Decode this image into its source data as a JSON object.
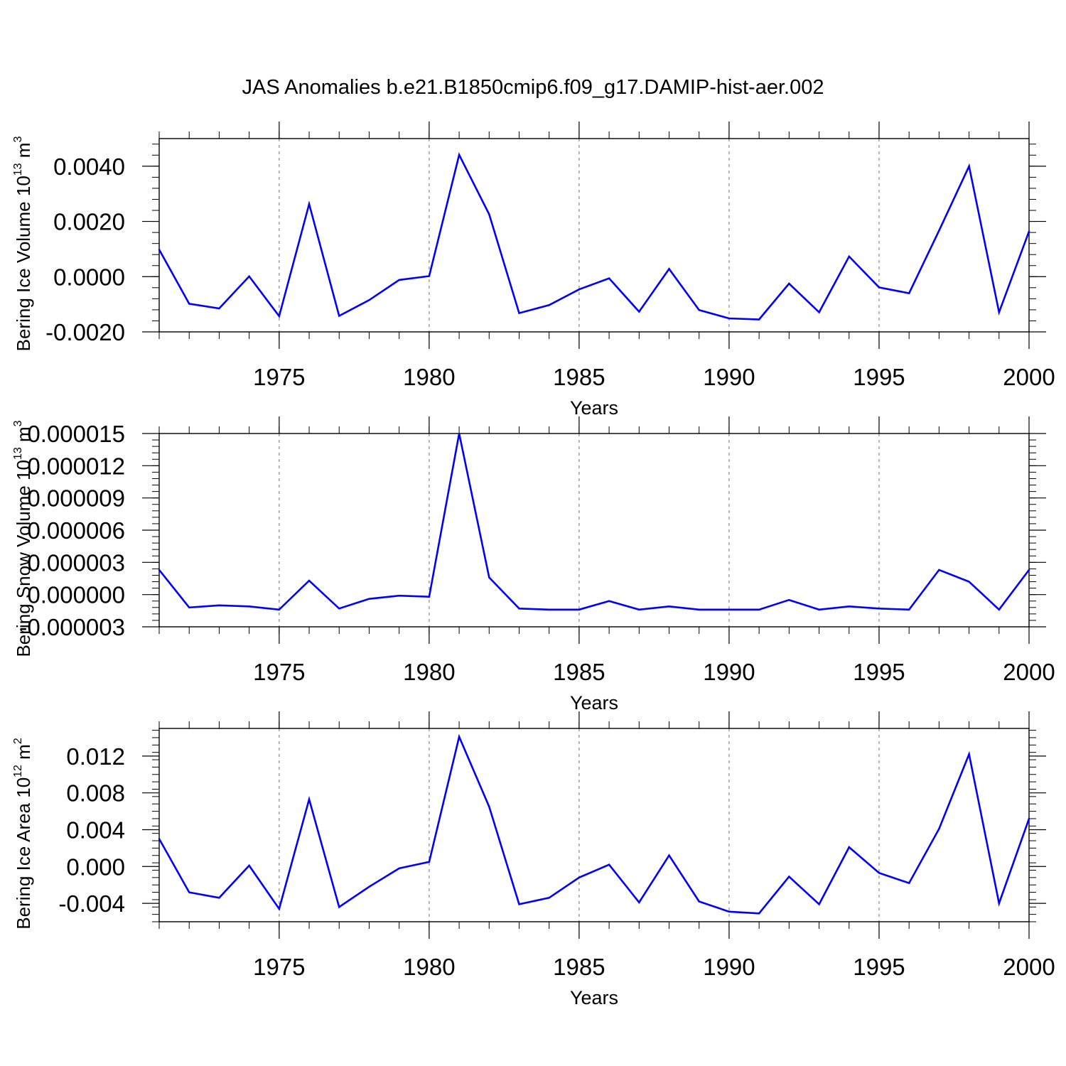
{
  "chart_data": {
    "title": "JAS Anomalies b.e21.B1850cmip6.f09_g17.DAMIP-hist-aer.002",
    "line_color": "#0000ff",
    "years": [
      1971,
      1972,
      1973,
      1974,
      1975,
      1976,
      1977,
      1978,
      1979,
      1980,
      1981,
      1982,
      1983,
      1984,
      1985,
      1986,
      1987,
      1988,
      1989,
      1990,
      1991,
      1992,
      1993,
      1994,
      1995,
      1996,
      1997,
      1998,
      1999,
      2000
    ],
    "panels": [
      {
        "type": "line",
        "name": "ice-volume",
        "ylabel": "Bering Ice Volume 10",
        "ylabel_exp": "13",
        "ylabel_unit": " m",
        "ylabel_unit_exp": "3",
        "xlabel": "Years",
        "xlim": [
          1971,
          2000
        ],
        "ylim": [
          -0.002,
          0.005
        ],
        "xticks": [
          1975,
          1980,
          1985,
          1990,
          1995,
          2000
        ],
        "xtick_labels": [
          "1975",
          "1980",
          "1985",
          "1990",
          "1995",
          "2000"
        ],
        "yticks": [
          -0.002,
          0.0,
          0.002,
          0.004
        ],
        "ytick_labels": [
          "-0.0020",
          "0.0000",
          "0.0020",
          "0.0040"
        ],
        "values": [
          0.00098,
          -0.00098,
          -0.00115,
          1e-05,
          -0.00143,
          0.00263,
          -0.00142,
          -0.00085,
          -0.00012,
          2e-05,
          0.00441,
          0.00226,
          -0.00132,
          -0.00103,
          -0.00046,
          -6e-05,
          -0.00127,
          0.00028,
          -0.00121,
          -0.00151,
          -0.00155,
          -0.00025,
          -0.00129,
          0.00073,
          -0.00039,
          -0.0006,
          0.00167,
          0.004,
          -0.00129,
          0.00164
        ]
      },
      {
        "type": "line",
        "name": "snow-volume",
        "ylabel": "Bering Snow Volume 10",
        "ylabel_exp": "13",
        "ylabel_unit": " m",
        "ylabel_unit_exp": "3",
        "xlabel": "Years",
        "xlim": [
          1971,
          2000
        ],
        "ylim": [
          -3e-06,
          1.5e-05
        ],
        "xticks": [
          1975,
          1980,
          1985,
          1990,
          1995,
          2000
        ],
        "xtick_labels": [
          "1975",
          "1980",
          "1985",
          "1990",
          "1995",
          "2000"
        ],
        "yticks": [
          -3e-06,
          0.0,
          3e-06,
          6e-06,
          9e-06,
          1.2e-05,
          1.5e-05
        ],
        "ytick_labels": [
          "-0.000003",
          "0.000000",
          "0.000003",
          "0.000006",
          "0.000009",
          "0.000012",
          "0.000015"
        ],
        "values": [
          2.3e-06,
          -1.2e-06,
          -1e-06,
          -1.1e-06,
          -1.4e-06,
          1.3e-06,
          -1.3e-06,
          -4e-07,
          -1e-07,
          -2e-07,
          1.5e-05,
          1.6e-06,
          -1.3e-06,
          -1.4e-06,
          -1.4e-06,
          -6e-07,
          -1.4e-06,
          -1.1e-06,
          -1.4e-06,
          -1.4e-06,
          -1.4e-06,
          -5e-07,
          -1.4e-06,
          -1.1e-06,
          -1.3e-06,
          -1.4e-06,
          2.3e-06,
          1.2e-06,
          -1.4e-06,
          2.3e-06
        ]
      },
      {
        "type": "line",
        "name": "ice-area",
        "ylabel": "Bering Ice Area 10",
        "ylabel_exp": "12",
        "ylabel_unit": " m",
        "ylabel_unit_exp": "2",
        "xlabel": "Years",
        "xlim": [
          1971,
          2000
        ],
        "ylim": [
          -0.006,
          0.015
        ],
        "xticks": [
          1975,
          1980,
          1985,
          1990,
          1995,
          2000
        ],
        "xtick_labels": [
          "1975",
          "1980",
          "1985",
          "1990",
          "1995",
          "2000"
        ],
        "yticks": [
          -0.004,
          0.0,
          0.004,
          0.008,
          0.012
        ],
        "ytick_labels": [
          "-0.004",
          "0.000",
          "0.004",
          "0.008",
          "0.012"
        ],
        "values": [
          0.003,
          -0.0028,
          -0.0034,
          0.0001,
          -0.0046,
          0.0073,
          -0.0044,
          -0.0022,
          -0.0002,
          0.0005,
          0.0141,
          0.0065,
          -0.0041,
          -0.0034,
          -0.0012,
          0.0002,
          -0.0039,
          0.0012,
          -0.0038,
          -0.0049,
          -0.0051,
          -0.0011,
          -0.0041,
          0.0021,
          -0.0007,
          -0.0018,
          0.0041,
          0.0122,
          -0.004,
          0.0052
        ]
      }
    ]
  }
}
